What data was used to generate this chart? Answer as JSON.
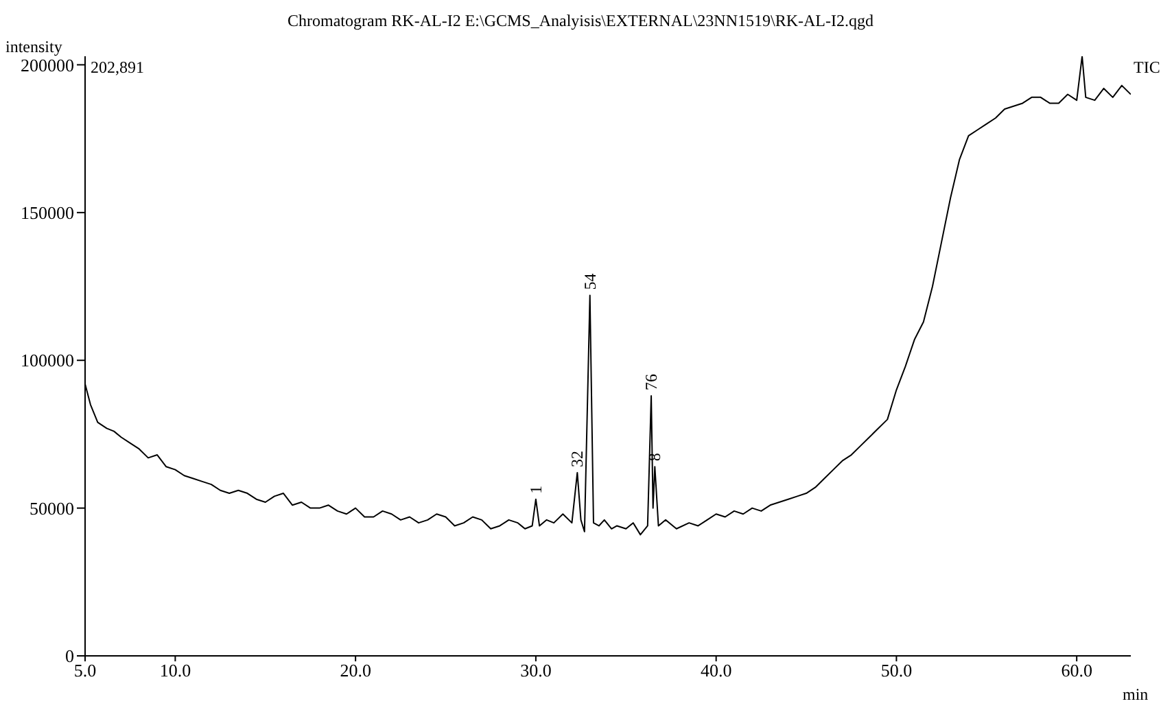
{
  "chart_data": {
    "type": "line",
    "title": "Chromatogram RK-AL-I2 E:\\GCMS_Analyisis\\EXTERNAL\\23NN1519\\RK-AL-I2.qgd",
    "xlabel": "min",
    "ylabel": "intensity",
    "annotations": [
      "202,891",
      "TIC",
      {
        "text": "1",
        "x": 30.0,
        "y": 53000
      },
      {
        "text": "32",
        "x": 32.3,
        "y": 62000
      },
      {
        "text": "54",
        "x": 33.0,
        "y": 122000
      },
      {
        "text": "76",
        "x": 36.4,
        "y": 88000
      },
      {
        "text": "8",
        "x": 36.6,
        "y": 64000
      }
    ],
    "x": [
      5.0,
      5.3,
      5.7,
      6.2,
      6.6,
      7.0,
      7.5,
      8.0,
      8.5,
      9.0,
      9.5,
      10.0,
      10.5,
      11.0,
      11.5,
      12.0,
      12.5,
      13.0,
      13.5,
      14.0,
      14.5,
      15.0,
      15.5,
      16.0,
      16.5,
      17.0,
      17.5,
      18.0,
      18.5,
      19.0,
      19.5,
      20.0,
      20.5,
      21.0,
      21.5,
      22.0,
      22.5,
      23.0,
      23.5,
      24.0,
      24.5,
      25.0,
      25.5,
      26.0,
      26.5,
      27.0,
      27.5,
      28.0,
      28.5,
      29.0,
      29.4,
      29.8,
      30.0,
      30.2,
      30.6,
      31.0,
      31.5,
      32.0,
      32.3,
      32.5,
      32.7,
      33.0,
      33.2,
      33.5,
      33.8,
      34.2,
      34.5,
      35.0,
      35.4,
      35.8,
      36.2,
      36.4,
      36.5,
      36.6,
      36.8,
      37.2,
      37.8,
      38.5,
      39.0,
      39.5,
      40.0,
      40.5,
      41.0,
      41.5,
      42.0,
      42.5,
      43.0,
      43.5,
      44.0,
      44.5,
      45.0,
      45.5,
      46.0,
      46.5,
      47.0,
      47.5,
      48.0,
      48.5,
      49.0,
      49.5,
      50.0,
      50.5,
      51.0,
      51.5,
      52.0,
      52.5,
      53.0,
      53.5,
      54.0,
      54.5,
      55.0,
      55.5,
      56.0,
      56.5,
      57.0,
      57.5,
      58.0,
      58.5,
      59.0,
      59.5,
      60.0,
      60.3,
      60.5,
      61.0,
      61.5,
      62.0,
      62.5,
      63.0
    ],
    "series": [
      {
        "color": "#000000",
        "values": [
          92000,
          85000,
          79000,
          77000,
          76000,
          74000,
          72000,
          70000,
          67000,
          68000,
          64000,
          63000,
          61000,
          60000,
          59000,
          58000,
          56000,
          55000,
          56000,
          55000,
          53000,
          52000,
          54000,
          55000,
          51000,
          52000,
          50000,
          50000,
          51000,
          49000,
          48000,
          50000,
          47000,
          47000,
          49000,
          48000,
          46000,
          47000,
          45000,
          46000,
          48000,
          47000,
          44000,
          45000,
          47000,
          46000,
          43000,
          44000,
          46000,
          45000,
          43000,
          44000,
          53000,
          44000,
          46000,
          45000,
          48000,
          45000,
          62000,
          46000,
          42000,
          122000,
          45000,
          44000,
          46000,
          43000,
          44000,
          43000,
          45000,
          41000,
          44000,
          88000,
          50000,
          64000,
          44000,
          46000,
          43000,
          45000,
          44000,
          46000,
          48000,
          47000,
          49000,
          48000,
          50000,
          49000,
          51000,
          52000,
          53000,
          54000,
          55000,
          57000,
          60000,
          63000,
          66000,
          68000,
          71000,
          74000,
          77000,
          80000,
          90000,
          98000,
          107000,
          113000,
          125000,
          140000,
          155000,
          168000,
          176000,
          178000,
          180000,
          182000,
          185000,
          186000,
          187000,
          189000,
          189000,
          187000,
          187000,
          190000,
          188000,
          202891,
          189000,
          188000,
          192000,
          189000,
          193000,
          190000
        ]
      }
    ],
    "xlim": [
      5,
      63
    ],
    "xticks": [
      {
        "value": 5,
        "label": "5.0"
      },
      {
        "value": 10,
        "label": "10.0"
      },
      {
        "value": 20,
        "label": "20.0"
      },
      {
        "value": 30,
        "label": "30.0"
      },
      {
        "value": 40,
        "label": "40.0"
      },
      {
        "value": 50,
        "label": "50.0"
      },
      {
        "value": 60,
        "label": "60.0"
      }
    ],
    "ylim": [
      0,
      202891
    ],
    "yticks": [
      0,
      50000,
      100000,
      150000,
      200000
    ],
    "grid": false,
    "legend": false,
    "marker": "none",
    "line_style": "solid"
  }
}
